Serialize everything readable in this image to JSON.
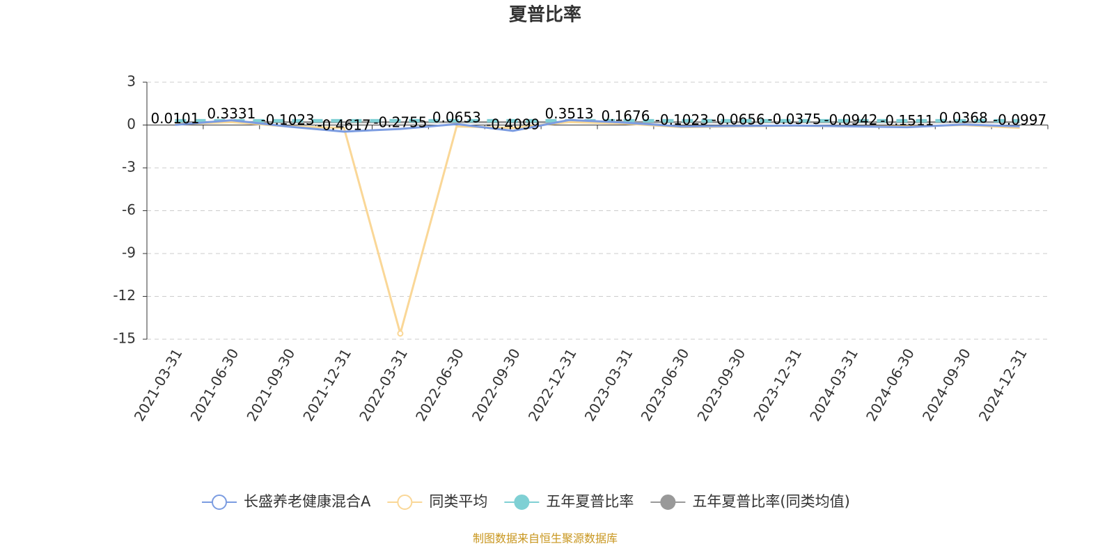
{
  "chart_data": {
    "type": "line",
    "title": "夏普比率",
    "categories": [
      "2021-03-31",
      "2021-06-30",
      "2021-09-30",
      "2021-12-31",
      "2022-03-31",
      "2022-06-30",
      "2022-09-30",
      "2022-12-31",
      "2023-03-31",
      "2023-06-30",
      "2023-09-30",
      "2023-12-31",
      "2024-03-31",
      "2024-06-30",
      "2024-09-30",
      "2024-12-31"
    ],
    "series": [
      {
        "name": "长盛养老健康混合A",
        "color": "#7b9ce1",
        "symbol": "emptyCircle",
        "dashed": false,
        "show_labels": true,
        "values": [
          0.0101,
          0.3331,
          -0.1023,
          -0.4617,
          -0.2755,
          0.0653,
          -0.4099,
          0.3513,
          0.1676,
          -0.1023,
          -0.0656,
          -0.0375,
          -0.0942,
          -0.1511,
          0.0368,
          -0.0997
        ]
      },
      {
        "name": "同类平均",
        "color": "#fad797",
        "symbol": "emptyCircle",
        "dashed": false,
        "show_labels": false,
        "values": [
          0.05,
          0.2,
          -0.1,
          -0.2,
          -14.6,
          -0.1,
          -0.2,
          0.2,
          0.1,
          -0.15,
          -0.1,
          -0.05,
          -0.1,
          -0.1,
          0.0,
          -0.2
        ]
      },
      {
        "name": "五年夏普比率",
        "color": "#7fd0d4",
        "symbol": "circle",
        "dashed": true,
        "show_labels": false,
        "values": [
          0.3,
          0.3,
          0.3,
          0.3,
          0.3,
          0.3,
          0.3,
          0.3,
          0.3,
          0.3,
          0.3,
          0.3,
          0.3,
          0.3,
          0.3,
          0.3
        ]
      },
      {
        "name": "五年夏普比率(同类均值)",
        "color": "#999999",
        "symbol": "circle",
        "dashed": false,
        "show_labels": false,
        "values": [
          0.2,
          0.2,
          0.2,
          0.2,
          0.2,
          0.2,
          0.2,
          0.2,
          0.2,
          0.2,
          0.2,
          0.2,
          0.2,
          0.2,
          0.2,
          0.2
        ]
      }
    ],
    "ylim": [
      -15,
      3
    ],
    "yticks": [
      -15,
      -12,
      -9,
      -6,
      -3,
      0,
      3
    ],
    "grid": true,
    "source": "制图数据来自恒生聚源数据库"
  }
}
